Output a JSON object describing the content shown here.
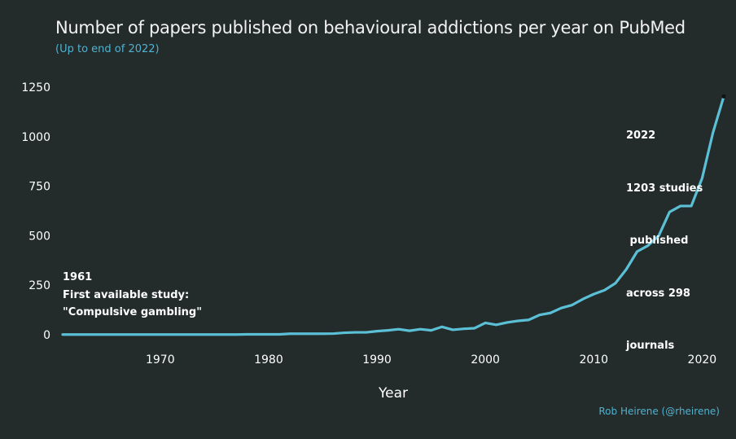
{
  "title": "Number of papers published on behavioural addictions per year on PubMed",
  "subtitle": "(Up to end of 2022)",
  "credit": "Rob Heirene (@rheirene)",
  "colors": {
    "background": "#232b2b",
    "line": "#5bbfd6",
    "accent": "#4fb3d1",
    "text": "#ffffff"
  },
  "chart_data": {
    "type": "line",
    "title": "Number of papers published on behavioural addictions per year on PubMed",
    "subtitle": "(Up to end of 2022)",
    "xlabel": "Year",
    "ylabel": "",
    "xlim": [
      1961,
      2022
    ],
    "ylim": [
      0,
      1250
    ],
    "x_ticks": [
      "1970",
      "1980",
      "1990",
      "2000",
      "2010",
      "2020"
    ],
    "y_ticks": [
      "0",
      "250",
      "500",
      "750",
      "1000",
      "1250"
    ],
    "grid": false,
    "x": [
      1961,
      1962,
      1963,
      1964,
      1965,
      1966,
      1967,
      1968,
      1969,
      1970,
      1971,
      1972,
      1973,
      1974,
      1975,
      1976,
      1977,
      1978,
      1979,
      1980,
      1981,
      1982,
      1983,
      1984,
      1985,
      1986,
      1987,
      1988,
      1989,
      1990,
      1991,
      1992,
      1993,
      1994,
      1995,
      1996,
      1997,
      1998,
      1999,
      2000,
      2001,
      2002,
      2003,
      2004,
      2005,
      2006,
      2007,
      2008,
      2009,
      2010,
      2011,
      2012,
      2013,
      2014,
      2015,
      2016,
      2017,
      2018,
      2019,
      2020,
      2021,
      2022
    ],
    "y": [
      1,
      1,
      1,
      1,
      1,
      1,
      1,
      1,
      1,
      1,
      1,
      1,
      1,
      1,
      1,
      1,
      1,
      2,
      2,
      2,
      2,
      5,
      5,
      5,
      5,
      6,
      10,
      12,
      12,
      18,
      22,
      28,
      20,
      28,
      22,
      40,
      25,
      30,
      33,
      60,
      50,
      62,
      70,
      75,
      100,
      110,
      135,
      150,
      180,
      205,
      225,
      260,
      330,
      420,
      450,
      500,
      620,
      650,
      650,
      790,
      1020,
      1203
    ]
  },
  "annotations": {
    "start": {
      "lines": [
        "1961",
        "First available study:",
        "\"Compulsive gambling\""
      ]
    },
    "end": {
      "lines": [
        "2022",
        "1203 studies",
        " published",
        "across 298",
        "journals"
      ]
    }
  }
}
